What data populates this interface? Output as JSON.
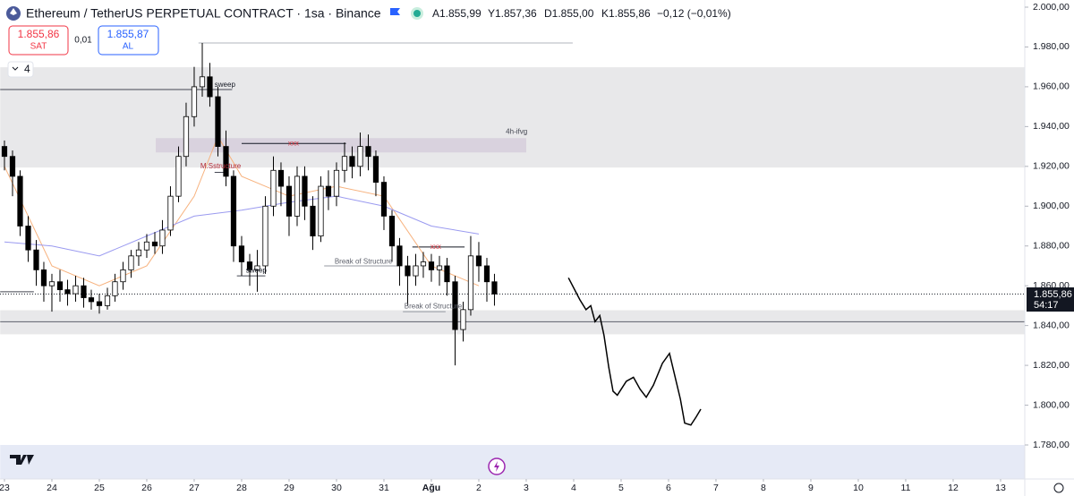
{
  "header": {
    "title": "Ethereum / TetherUS PERPETUAL CONTRACT · 1sa · Binance",
    "open": "A1.855,99",
    "high": "Y1.857,36",
    "low": "D1.855,00",
    "close": "K1.855,86",
    "change": "−0,12 (−0,01%)",
    "sell_price": "1.855,86",
    "sell_label": "SAT",
    "spread": "0,01",
    "buy_price": "1.855,87",
    "buy_label": "AL",
    "indicators_count": "4",
    "price_tag": "1.855,86",
    "countdown": "54:17"
  },
  "chart_data": {
    "type": "candlestick",
    "up_color": "#ffffff",
    "down_color": "#000000",
    "edge_color": "#000000",
    "x": [
      0,
      0.17,
      0.33,
      0.5,
      0.67,
      0.83,
      1,
      1.17,
      1.33,
      1.5,
      1.67,
      1.83,
      2,
      2.17,
      2.33,
      2.5,
      2.67,
      2.83,
      3,
      3.17,
      3.33,
      3.5,
      3.67,
      3.83,
      4,
      4.17,
      4.33,
      4.5,
      4.67,
      4.83,
      5,
      5.17,
      5.33,
      5.5,
      5.67,
      5.83,
      6,
      6.17,
      6.33,
      6.5,
      6.67,
      6.83,
      7,
      7.17,
      7.33,
      7.5,
      7.67,
      7.83,
      8,
      8.17,
      8.33,
      8.5,
      8.67,
      8.83,
      9,
      9.17,
      9.33,
      9.5,
      9.67,
      9.83,
      10,
      10.17,
      10.33
    ],
    "open": [
      1930,
      1925,
      1915,
      1890,
      1878,
      1868,
      1860,
      1862,
      1858,
      1856,
      1860,
      1854,
      1852,
      1850,
      1855,
      1862,
      1868,
      1875,
      1878,
      1882,
      1880,
      1888,
      1905,
      1925,
      1945,
      1960,
      1965,
      1955,
      1930,
      1915,
      1880,
      1872,
      1868,
      1870,
      1900,
      1918,
      1910,
      1895,
      1915,
      1900,
      1885,
      1910,
      1905,
      1918,
      1925,
      1920,
      1930,
      1925,
      1912,
      1895,
      1880,
      1870,
      1865,
      1870,
      1872,
      1868,
      1870,
      1862,
      1838,
      1848,
      1875,
      1870,
      1862
    ],
    "high": [
      1933,
      1928,
      1918,
      1895,
      1883,
      1872,
      1866,
      1868,
      1863,
      1865,
      1864,
      1858,
      1856,
      1859,
      1866,
      1872,
      1878,
      1882,
      1886,
      1887,
      1893,
      1910,
      1930,
      1952,
      1970,
      1982,
      1972,
      1960,
      1938,
      1918,
      1885,
      1876,
      1878,
      1905,
      1925,
      1922,
      1915,
      1920,
      1920,
      1905,
      1915,
      1918,
      1922,
      1932,
      1930,
      1937,
      1936,
      1928,
      1915,
      1898,
      1884,
      1875,
      1876,
      1877,
      1876,
      1875,
      1874,
      1865,
      1852,
      1885,
      1882,
      1874,
      1866
    ],
    "low": [
      1918,
      1905,
      1885,
      1872,
      1860,
      1852,
      1847,
      1852,
      1850,
      1852,
      1849,
      1848,
      1846,
      1848,
      1852,
      1858,
      1864,
      1870,
      1874,
      1876,
      1876,
      1885,
      1902,
      1920,
      1940,
      1955,
      1950,
      1925,
      1910,
      1872,
      1865,
      1860,
      1857,
      1866,
      1895,
      1900,
      1885,
      1890,
      1893,
      1878,
      1882,
      1898,
      1900,
      1912,
      1914,
      1915,
      1918,
      1905,
      1888,
      1872,
      1860,
      1850,
      1860,
      1864,
      1862,
      1860,
      1855,
      1820,
      1832,
      1845,
      1862,
      1852,
      1850
    ],
    "close": [
      1925,
      1915,
      1890,
      1878,
      1868,
      1860,
      1862,
      1858,
      1856,
      1860,
      1854,
      1852,
      1850,
      1855,
      1862,
      1868,
      1875,
      1878,
      1882,
      1880,
      1888,
      1905,
      1925,
      1945,
      1960,
      1965,
      1955,
      1930,
      1915,
      1880,
      1872,
      1868,
      1870,
      1900,
      1918,
      1910,
      1895,
      1915,
      1900,
      1885,
      1910,
      1905,
      1918,
      1925,
      1920,
      1930,
      1925,
      1912,
      1895,
      1880,
      1870,
      1865,
      1870,
      1872,
      1868,
      1870,
      1862,
      1838,
      1848,
      1875,
      1870,
      1862,
      1855.86
    ],
    "moving_averages": [
      {
        "color": "#f7b27e",
        "x": [
          0,
          1,
          2,
          3,
          4,
          4.5,
          5,
          6,
          7,
          8,
          9,
          10
        ],
        "values": [
          1920,
          1870,
          1860,
          1870,
          1905,
          1935,
          1915,
          1905,
          1910,
          1905,
          1870,
          1860
        ]
      },
      {
        "color": "#9a9af0",
        "x": [
          0,
          1,
          2,
          3,
          4,
          5,
          6,
          7,
          8,
          9,
          10
        ],
        "values": [
          1882,
          1880,
          1875,
          1885,
          1895,
          1898,
          1902,
          1905,
          1900,
          1890,
          1886
        ]
      }
    ],
    "zones": [
      {
        "x": [
          -0.09,
          21.51
        ],
        "y": [
          1919.4,
          1969.8
        ],
        "color": "#e8e8ea"
      },
      {
        "x": [
          3.19,
          11.0
        ],
        "y": [
          1927,
          1934.2
        ],
        "color": "#d9d2de"
      },
      {
        "x": [
          -0.09,
          21.51
        ],
        "y": [
          1835.6,
          1847.7
        ],
        "color": "#e8e8ea"
      },
      {
        "x": [
          -0.09,
          21.51
        ],
        "y": [
          1762.9,
          1780
        ],
        "color": "#e6eaf6"
      }
    ],
    "lines": [
      {
        "x": [
          4.09,
          11.98
        ],
        "y": 1982,
        "color": "#b2b5be"
      },
      {
        "x": [
          -0.09,
          4.8
        ],
        "y": 1958.6,
        "color": "#434651"
      },
      {
        "x": [
          -0.09,
          0.62
        ],
        "y": 1857,
        "color": "#434651"
      },
      {
        "x": [
          4.43,
          4.72
        ],
        "y": 1917,
        "color": "#434651"
      },
      {
        "x": [
          5.0,
          7.2
        ],
        "y": 1931.5,
        "color": "#131722"
      },
      {
        "x": [
          4.9,
          5.5
        ],
        "y": 1865,
        "color": "#434651"
      },
      {
        "x": [
          6.74,
          8.3
        ],
        "y": 1870,
        "color": "#9598a1"
      },
      {
        "x": [
          8.6,
          9.7
        ],
        "y": 1879.5,
        "color": "#131722"
      },
      {
        "x": [
          8.4,
          9.3
        ],
        "y": 1847,
        "color": "#9598a1"
      },
      {
        "x": [
          -0.09,
          21.51
        ],
        "y": 1841.9,
        "color": "#5d606b"
      }
    ],
    "annotations": [
      {
        "text": "sweep",
        "x": 4.43,
        "y": 1961,
        "color": "#131722"
      },
      {
        "text": "sweep",
        "x": 5.09,
        "y": 1867.6,
        "color": "#131722"
      },
      {
        "text": "M.Sstructure",
        "x": 4.13,
        "y": 1920,
        "color": "#b22833"
      },
      {
        "text": "xxx",
        "x": 5.98,
        "y": 1931.5,
        "color": "#d1303c"
      },
      {
        "text": "xxx",
        "x": 8.98,
        "y": 1879.5,
        "color": "#d1303c"
      },
      {
        "text": "Break of Structure",
        "x": 6.96,
        "y": 1872,
        "color": "#5d606b"
      },
      {
        "text": "Break of Structure",
        "x": 8.43,
        "y": 1849.5,
        "color": "#5d606b"
      },
      {
        "text": "4h-ifvg",
        "x": 10.57,
        "y": 1937.4,
        "color": "#434651"
      }
    ],
    "forecast": {
      "color": "#000000",
      "x": [
        11.89,
        12.13,
        12.26,
        12.36,
        12.45,
        12.55,
        12.64,
        12.74,
        12.83,
        12.92,
        13.11,
        13.26,
        13.4,
        13.53,
        13.68,
        13.87,
        14.02,
        14.09,
        14.25,
        14.34,
        14.47,
        14.58,
        14.68
      ],
      "values": [
        1864,
        1853,
        1848,
        1850,
        1842,
        1845,
        1835,
        1819,
        1807,
        1805,
        1812,
        1814,
        1808,
        1804,
        1810,
        1821,
        1826,
        1819,
        1803,
        1791,
        1790,
        1794,
        1798
      ]
    },
    "current_price": 1855.86,
    "xlim": [
      -0.094,
      21.51
    ],
    "ylim": [
      1762.9,
      2003.6
    ],
    "xticks": [
      {
        "value": 0,
        "label": "23"
      },
      {
        "value": 1,
        "label": "24"
      },
      {
        "value": 2,
        "label": "25"
      },
      {
        "value": 3,
        "label": "26"
      },
      {
        "value": 4,
        "label": "27"
      },
      {
        "value": 5,
        "label": "28"
      },
      {
        "value": 6,
        "label": "29"
      },
      {
        "value": 7,
        "label": "30"
      },
      {
        "value": 8,
        "label": "31"
      },
      {
        "value": 9,
        "label": "Ağu"
      },
      {
        "value": 10,
        "label": "2"
      },
      {
        "value": 11,
        "label": "3"
      },
      {
        "value": 12,
        "label": "4"
      },
      {
        "value": 13,
        "label": "5"
      },
      {
        "value": 14,
        "label": "6"
      },
      {
        "value": 15,
        "label": "7"
      },
      {
        "value": 16,
        "label": "8"
      },
      {
        "value": 17,
        "label": "9"
      },
      {
        "value": 18,
        "label": "10"
      },
      {
        "value": 19,
        "label": "11"
      },
      {
        "value": 20,
        "label": "12"
      },
      {
        "value": 21,
        "label": "13"
      }
    ],
    "yticks": [
      {
        "value": 1780,
        "label": "1.780,00"
      },
      {
        "value": 1800,
        "label": "1.800,00"
      },
      {
        "value": 1820,
        "label": "1.820,00"
      },
      {
        "value": 1840,
        "label": "1.840,00"
      },
      {
        "value": 1860,
        "label": "1.860,00"
      },
      {
        "value": 1880,
        "label": "1.880,00"
      },
      {
        "value": 1900,
        "label": "1.900,00"
      },
      {
        "value": 1920,
        "label": "1.920,00"
      },
      {
        "value": 1940,
        "label": "1.940,00"
      },
      {
        "value": 1960,
        "label": "1.960,00"
      },
      {
        "value": 1980,
        "label": "1.980,00"
      },
      {
        "value": 2000,
        "label": "2.000,00"
      }
    ]
  }
}
